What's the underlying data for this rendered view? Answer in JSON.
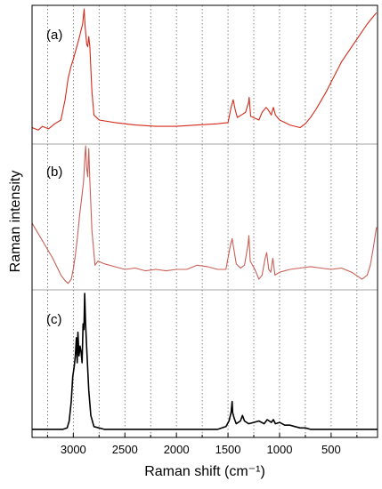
{
  "chart_data": {
    "type": "line",
    "xlabel": "Raman shift (cm⁻¹)",
    "ylabel": "Raman intensity",
    "xlim": [
      3400,
      50
    ],
    "x_reversed": true,
    "xticks": [
      3000,
      2500,
      2000,
      1500,
      1000,
      500
    ],
    "x_tick_labels": [
      "3000",
      "2500",
      "2000",
      "1500",
      "1000",
      "500"
    ],
    "grid": "vertical dotted every 250 cm⁻¹",
    "panels": [
      {
        "label": "(a)",
        "color": "#d42a1a",
        "points": [
          [
            3400,
            0.06
          ],
          [
            3340,
            0.04
          ],
          [
            3300,
            0.07
          ],
          [
            3240,
            0.05
          ],
          [
            3180,
            0.09
          ],
          [
            3120,
            0.12
          ],
          [
            3080,
            0.28
          ],
          [
            3050,
            0.45
          ],
          [
            3020,
            0.55
          ],
          [
            3000,
            0.6
          ],
          [
            2980,
            0.66
          ],
          [
            2960,
            0.72
          ],
          [
            2940,
            0.78
          ],
          [
            2925,
            0.83
          ],
          [
            2910,
            0.88
          ],
          [
            2895,
            1.0
          ],
          [
            2885,
            0.86
          ],
          [
            2870,
            0.72
          ],
          [
            2860,
            0.7
          ],
          [
            2850,
            0.78
          ],
          [
            2840,
            0.7
          ],
          [
            2820,
            0.35
          ],
          [
            2800,
            0.16
          ],
          [
            2750,
            0.12
          ],
          [
            2600,
            0.1
          ],
          [
            2400,
            0.08
          ],
          [
            2200,
            0.07
          ],
          [
            2000,
            0.07
          ],
          [
            1800,
            0.08
          ],
          [
            1600,
            0.09
          ],
          [
            1500,
            0.1
          ],
          [
            1470,
            0.22
          ],
          [
            1450,
            0.28
          ],
          [
            1430,
            0.2
          ],
          [
            1410,
            0.14
          ],
          [
            1370,
            0.16
          ],
          [
            1330,
            0.18
          ],
          [
            1300,
            0.26
          ],
          [
            1295,
            0.3
          ],
          [
            1280,
            0.15
          ],
          [
            1200,
            0.12
          ],
          [
            1170,
            0.18
          ],
          [
            1130,
            0.22
          ],
          [
            1110,
            0.2
          ],
          [
            1080,
            0.16
          ],
          [
            1060,
            0.22
          ],
          [
            1040,
            0.16
          ],
          [
            1000,
            0.12
          ],
          [
            950,
            0.1
          ],
          [
            900,
            0.08
          ],
          [
            850,
            0.07
          ],
          [
            800,
            0.06
          ],
          [
            750,
            0.09
          ],
          [
            700,
            0.14
          ],
          [
            650,
            0.2
          ],
          [
            600,
            0.27
          ],
          [
            550,
            0.34
          ],
          [
            500,
            0.42
          ],
          [
            450,
            0.5
          ],
          [
            400,
            0.58
          ],
          [
            350,
            0.64
          ],
          [
            300,
            0.7
          ],
          [
            250,
            0.76
          ],
          [
            200,
            0.82
          ],
          [
            150,
            0.88
          ],
          [
            100,
            0.93
          ],
          [
            60,
            0.97
          ]
        ]
      },
      {
        "label": "(b)",
        "color": "#c96058",
        "points": [
          [
            3400,
            0.45
          ],
          [
            3360,
            0.4
          ],
          [
            3320,
            0.35
          ],
          [
            3280,
            0.3
          ],
          [
            3240,
            0.25
          ],
          [
            3200,
            0.2
          ],
          [
            3160,
            0.14
          ],
          [
            3120,
            0.08
          ],
          [
            3080,
            0.04
          ],
          [
            3050,
            0.02
          ],
          [
            3020,
            0.05
          ],
          [
            3000,
            0.12
          ],
          [
            2980,
            0.22
          ],
          [
            2960,
            0.35
          ],
          [
            2940,
            0.5
          ],
          [
            2920,
            0.62
          ],
          [
            2900,
            0.75
          ],
          [
            2890,
            0.9
          ],
          [
            2880,
            1.0
          ],
          [
            2872,
            0.85
          ],
          [
            2860,
            0.78
          ],
          [
            2850,
            0.98
          ],
          [
            2842,
            0.8
          ],
          [
            2820,
            0.4
          ],
          [
            2790,
            0.15
          ],
          [
            2760,
            0.18
          ],
          [
            2700,
            0.16
          ],
          [
            2600,
            0.14
          ],
          [
            2500,
            0.12
          ],
          [
            2400,
            0.13
          ],
          [
            2300,
            0.11
          ],
          [
            2200,
            0.12
          ],
          [
            2100,
            0.11
          ],
          [
            2000,
            0.12
          ],
          [
            1900,
            0.12
          ],
          [
            1800,
            0.15
          ],
          [
            1700,
            0.14
          ],
          [
            1600,
            0.12
          ],
          [
            1520,
            0.12
          ],
          [
            1480,
            0.28
          ],
          [
            1460,
            0.34
          ],
          [
            1440,
            0.25
          ],
          [
            1420,
            0.16
          ],
          [
            1380,
            0.13
          ],
          [
            1340,
            0.15
          ],
          [
            1305,
            0.3
          ],
          [
            1298,
            0.36
          ],
          [
            1285,
            0.18
          ],
          [
            1240,
            0.12
          ],
          [
            1200,
            0.05
          ],
          [
            1170,
            0.08
          ],
          [
            1140,
            0.2
          ],
          [
            1125,
            0.24
          ],
          [
            1105,
            0.12
          ],
          [
            1085,
            0.1
          ],
          [
            1065,
            0.2
          ],
          [
            1045,
            0.08
          ],
          [
            1000,
            0.1
          ],
          [
            900,
            0.12
          ],
          [
            800,
            0.13
          ],
          [
            700,
            0.14
          ],
          [
            600,
            0.13
          ],
          [
            500,
            0.12
          ],
          [
            400,
            0.13
          ],
          [
            300,
            0.1
          ],
          [
            200,
            0.05
          ],
          [
            150,
            0.08
          ],
          [
            120,
            0.15
          ],
          [
            90,
            0.28
          ],
          [
            60,
            0.42
          ]
        ]
      },
      {
        "label": "(c)",
        "color": "#000000",
        "points": [
          [
            3400,
            0.02
          ],
          [
            3200,
            0.02
          ],
          [
            3100,
            0.02
          ],
          [
            3060,
            0.03
          ],
          [
            3040,
            0.08
          ],
          [
            3020,
            0.22
          ],
          [
            3005,
            0.4
          ],
          [
            2990,
            0.48
          ],
          [
            2980,
            0.55
          ],
          [
            2970,
            0.68
          ],
          [
            2962,
            0.5
          ],
          [
            2955,
            0.72
          ],
          [
            2945,
            0.55
          ],
          [
            2935,
            0.62
          ],
          [
            2925,
            0.58
          ],
          [
            2915,
            0.5
          ],
          [
            2905,
            0.78
          ],
          [
            2897,
            0.74
          ],
          [
            2890,
            1.0
          ],
          [
            2882,
            0.8
          ],
          [
            2870,
            0.6
          ],
          [
            2850,
            0.3
          ],
          [
            2830,
            0.12
          ],
          [
            2800,
            0.04
          ],
          [
            2700,
            0.02
          ],
          [
            2500,
            0.02
          ],
          [
            2000,
            0.02
          ],
          [
            1800,
            0.02
          ],
          [
            1600,
            0.02
          ],
          [
            1520,
            0.04
          ],
          [
            1490,
            0.08
          ],
          [
            1470,
            0.14
          ],
          [
            1460,
            0.22
          ],
          [
            1455,
            0.14
          ],
          [
            1440,
            0.1
          ],
          [
            1420,
            0.06
          ],
          [
            1380,
            0.08
          ],
          [
            1360,
            0.12
          ],
          [
            1340,
            0.08
          ],
          [
            1300,
            0.06
          ],
          [
            1250,
            0.07
          ],
          [
            1200,
            0.08
          ],
          [
            1150,
            0.06
          ],
          [
            1120,
            0.09
          ],
          [
            1080,
            0.07
          ],
          [
            1060,
            0.09
          ],
          [
            1040,
            0.06
          ],
          [
            1000,
            0.07
          ],
          [
            950,
            0.05
          ],
          [
            900,
            0.05
          ],
          [
            850,
            0.04
          ],
          [
            800,
            0.03
          ],
          [
            750,
            0.03
          ],
          [
            700,
            0.02
          ],
          [
            600,
            0.02
          ],
          [
            500,
            0.02
          ],
          [
            400,
            0.02
          ],
          [
            300,
            0.02
          ],
          [
            200,
            0.02
          ],
          [
            50,
            0.02
          ]
        ]
      }
    ]
  }
}
